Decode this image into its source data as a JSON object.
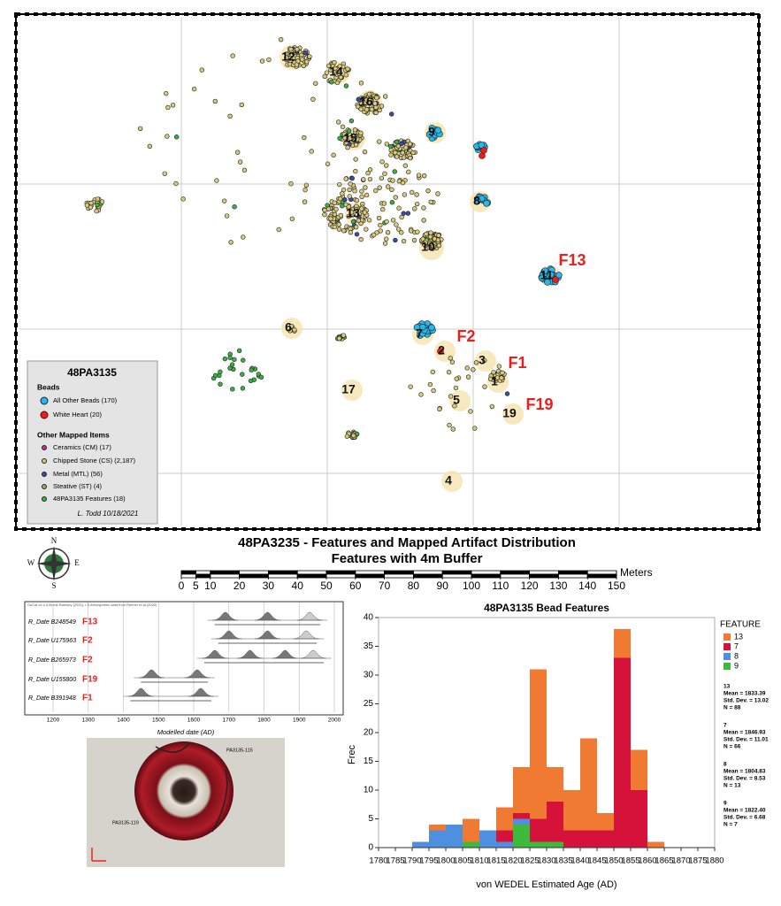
{
  "map": {
    "title": "48PA3235 - Features and Mapped Artifact Distribution",
    "subtitle": "Features with 4m Buffer",
    "feature_labels": [
      "12",
      "14",
      "16",
      "15",
      "9",
      "8",
      "13",
      "10",
      "11",
      "6",
      "7",
      "2",
      "3",
      "1",
      "17",
      "5",
      "19",
      "4"
    ],
    "feature_callouts": [
      "F13",
      "F2",
      "F1",
      "F19"
    ],
    "legend": {
      "title": "48PA3135",
      "beads_heading": "Beads",
      "beads": [
        "All Other Beads (170)",
        "White Heart (20)"
      ],
      "other_heading": "Other Mapped Items",
      "other": [
        "Ceramics (CM) (17)",
        "Chipped Stone (CS) (2,187)",
        "Metal (MTL) (56)",
        "Steative (ST) (4)",
        "48PA3135 Features (18)"
      ],
      "credit": "L. Todd 10/18/2021"
    },
    "north_arrow": [
      "N",
      "E",
      "S",
      "W"
    ],
    "scale_bar": {
      "ticks": [
        0,
        5,
        10,
        20,
        30,
        40,
        50,
        60,
        70,
        80,
        90,
        100,
        110,
        120,
        130,
        140,
        150
      ],
      "unit": "Meters"
    }
  },
  "oxcal": {
    "header": "OxCal v4.4.4 Bronk Ramsey (2021); r:5 Atmospheric data from Reimer et al (2020)",
    "rows": [
      {
        "id": "R_Date B248549",
        "feature": "F13",
        "peaks": [
          1690,
          1810,
          1930
        ]
      },
      {
        "id": "R_Date U175963",
        "feature": "F2",
        "peaks": [
          1700,
          1810,
          1920
        ]
      },
      {
        "id": "R_Date B265973",
        "feature": "F2",
        "peaks": [
          1660,
          1760,
          1860,
          1940
        ]
      },
      {
        "id": "R_Date U155800",
        "feature": "F19",
        "peaks": [
          1480,
          1610
        ]
      },
      {
        "id": "R_Date B391948",
        "feature": "F1",
        "peaks": [
          1450,
          1620
        ]
      }
    ],
    "xlim": [
      1200,
      2000
    ],
    "xticks": [
      1200,
      1300,
      1400,
      1500,
      1600,
      1700,
      1800,
      1900,
      2000
    ],
    "xlabel": "Modelled date (AD)"
  },
  "photo_labels": [
    "PA3135-115",
    "PA3135-119"
  ],
  "chart_data": {
    "type": "histogram",
    "title": "48PA3135 Bead Features",
    "xlabel": "von WEDEL Estimated Age (AD)",
    "ylabel": "Frec",
    "legend_title": "FEATURE",
    "bins": [
      1780,
      1785,
      1790,
      1795,
      1800,
      1805,
      1810,
      1815,
      1820,
      1825,
      1830,
      1835,
      1840,
      1845,
      1850,
      1855,
      1860,
      1865,
      1870,
      1875,
      1880
    ],
    "series": [
      {
        "name": "13",
        "color": "#f07a32",
        "values": [
          0,
          0,
          0,
          1,
          0,
          4,
          0,
          4,
          8,
          26,
          6,
          7,
          16,
          3,
          5,
          7,
          1,
          0,
          0,
          0
        ]
      },
      {
        "name": "7",
        "color": "#d4123a",
        "values": [
          0,
          0,
          0,
          0,
          0,
          0,
          0,
          2,
          1,
          4,
          7,
          3,
          3,
          3,
          33,
          10,
          0,
          0,
          0,
          0
        ]
      },
      {
        "name": "8",
        "color": "#4f8fe0",
        "values": [
          0,
          0,
          1,
          3,
          4,
          0,
          3,
          1,
          1,
          0,
          0,
          0,
          0,
          0,
          0,
          0,
          0,
          0,
          0,
          0
        ]
      },
      {
        "name": "9",
        "color": "#3cba3c",
        "values": [
          0,
          0,
          0,
          0,
          0,
          1,
          0,
          0,
          4,
          1,
          1,
          0,
          0,
          0,
          0,
          0,
          0,
          0,
          0,
          0
        ]
      }
    ],
    "stats": [
      {
        "feature": "13",
        "lines": [
          "Mean = 1833.39",
          "Std. Dev. = 13.02",
          "N = 88"
        ]
      },
      {
        "feature": "7",
        "lines": [
          "Mean = 1846.93",
          "Std. Dev. = 11.01",
          "N = 66"
        ]
      },
      {
        "feature": "8",
        "lines": [
          "Mean = 1804.83",
          "Std. Dev. = 8.53",
          "N = 13"
        ]
      },
      {
        "feature": "9",
        "lines": [
          "Mean = 1822.40",
          "Std. Dev. = 6.68",
          "N = 7"
        ]
      }
    ],
    "xlim": [
      1780,
      1880
    ],
    "xticks": [
      1780,
      1785,
      1790,
      1795,
      1800,
      1805,
      1810,
      1815,
      1820,
      1825,
      1830,
      1835,
      1840,
      1845,
      1850,
      1855,
      1860,
      1865,
      1870,
      1875,
      1880
    ],
    "ylim": [
      0,
      40
    ],
    "yticks": [
      0,
      5,
      10,
      15,
      20,
      25,
      30,
      35,
      40
    ],
    "grid": false
  }
}
